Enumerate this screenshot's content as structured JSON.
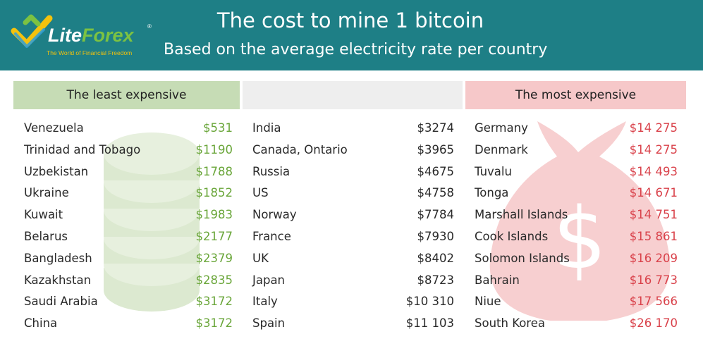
{
  "header": {
    "title": "The cost to mine 1 bitcoin",
    "subtitle": "Based on the average electricity rate per country",
    "logo_text": "LiteForex",
    "logo_tagline": "The World of Financial Freedom",
    "background_color": "#1e7f86"
  },
  "chart_data": {
    "type": "table",
    "title": "The cost to mine 1 bitcoin",
    "subtitle": "Based on the average electricity rate per country",
    "columns": [
      {
        "heading": "The least expensive",
        "heading_color": "#c6dcb5",
        "value_color": "#6aa63a",
        "icon": "coin-stack-icon",
        "rows": [
          {
            "country": "Venezuela",
            "cost": "$531"
          },
          {
            "country": "Trinidad and Tobago",
            "cost": "$1190"
          },
          {
            "country": "Uzbekistan",
            "cost": "$1788"
          },
          {
            "country": "Ukraine",
            "cost": "$1852"
          },
          {
            "country": "Kuwait",
            "cost": "$1983"
          },
          {
            "country": "Belarus",
            "cost": "$2177"
          },
          {
            "country": "Bangladesh",
            "cost": "$2379"
          },
          {
            "country": "Kazakhstan",
            "cost": "$2835"
          },
          {
            "country": "Saudi Arabia",
            "cost": "$3172"
          },
          {
            "country": "China",
            "cost": "$3172"
          }
        ]
      },
      {
        "heading": "",
        "heading_color": "#eeeeee",
        "value_color": "#2a2a2a",
        "rows": [
          {
            "country": "India",
            "cost": "$3274"
          },
          {
            "country": "Canada, Ontario",
            "cost": "$3965"
          },
          {
            "country": "Russia",
            "cost": "$4675"
          },
          {
            "country": "US",
            "cost": "$4758"
          },
          {
            "country": "Norway",
            "cost": "$7784"
          },
          {
            "country": "France",
            "cost": "$7930"
          },
          {
            "country": "UK",
            "cost": "$8402"
          },
          {
            "country": "Japan",
            "cost": "$8723"
          },
          {
            "country": "Italy",
            "cost": "$10 310"
          },
          {
            "country": "Spain",
            "cost": "$11 103"
          }
        ]
      },
      {
        "heading": "The most expensive",
        "heading_color": "#f6c8c9",
        "value_color": "#d9414a",
        "icon": "money-bag-icon",
        "rows": [
          {
            "country": "Germany",
            "cost": "$14 275"
          },
          {
            "country": "Denmark",
            "cost": "$14 275"
          },
          {
            "country": "Tuvalu",
            "cost": "$14 493"
          },
          {
            "country": "Tonga",
            "cost": "$14 671"
          },
          {
            "country": "Marshall Islands",
            "cost": "$14 751"
          },
          {
            "country": "Cook Islands",
            "cost": "$15 861"
          },
          {
            "country": "Solomon Islands",
            "cost": "$16 209"
          },
          {
            "country": "Bahrain",
            "cost": "$16 773"
          },
          {
            "country": "Niue",
            "cost": "$17 566"
          },
          {
            "country": "South Korea",
            "cost": "$26 170"
          }
        ]
      }
    ]
  }
}
